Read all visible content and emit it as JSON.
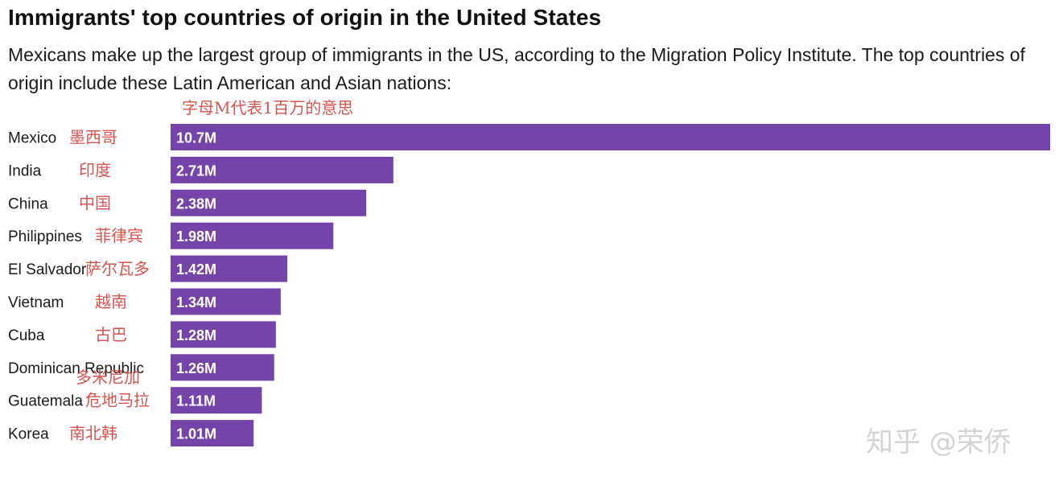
{
  "chart_data": {
    "type": "bar",
    "orientation": "horizontal",
    "title": "Immigrants' top countries of origin in the United States",
    "subtitle": "Mexicans make up the largest group of immigrants in the US, according to the Migration Policy Institute. The top countries of origin include these Latin American and Asian nations:",
    "annotation": "字母M代表1百万的意思",
    "categories": [
      "Mexico",
      "India",
      "China",
      "Philippines",
      "El Salvador",
      "Vietnam",
      "Cuba",
      "Dominican Republic",
      "Guatemala",
      "Korea"
    ],
    "chinese_labels": [
      "墨西哥",
      "印度",
      "中国",
      "菲律宾",
      "萨尔瓦多",
      "越南",
      "古巴",
      "多米尼加",
      "危地马拉",
      "南北韩"
    ],
    "values": [
      10.7,
      2.71,
      2.38,
      1.98,
      1.42,
      1.34,
      1.28,
      1.26,
      1.11,
      1.01
    ],
    "value_labels": [
      "10.7M",
      "2.71M",
      "2.38M",
      "1.98M",
      "1.42M",
      "1.34M",
      "1.28M",
      "1.26M",
      "1.11M",
      "1.01M"
    ],
    "bar_color": "#7444a8",
    "annotation_color": "#d9534f",
    "grid": false,
    "legend": "none"
  },
  "watermark": "知乎 @荣侨"
}
